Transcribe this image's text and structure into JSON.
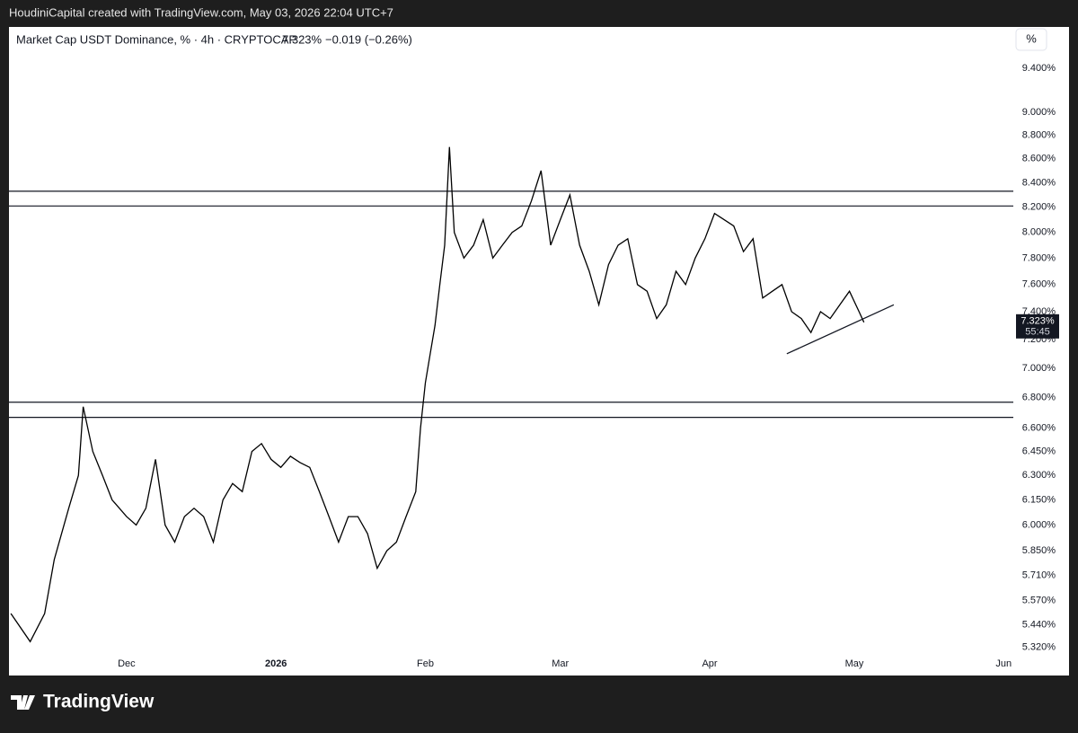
{
  "header": {
    "credit": "HoudiniCapital created with TradingView.com, May 03, 2026 22:04 UTC+7"
  },
  "footer": {
    "brand": "TradingView"
  },
  "chart_data": {
    "type": "line",
    "title": "Market Cap USDT Dominance, % · 4h · CRYPTOCAP",
    "last_value_label": "7.323%",
    "change_label": "−0.019 (−0.26%)",
    "scale_button": "%",
    "log_scale": true,
    "x": [
      -24,
      -20,
      -17,
      -15,
      -12,
      -10,
      -9,
      -7,
      -5,
      -3,
      0,
      2,
      4,
      6,
      8,
      10,
      12,
      14,
      16,
      18,
      20,
      22,
      24,
      26,
      28,
      30,
      32,
      34,
      36,
      38,
      40,
      42,
      44,
      46,
      48,
      50,
      52,
      54,
      56,
      58,
      60,
      61,
      62,
      63,
      64,
      65,
      66,
      67,
      68,
      70,
      72,
      74,
      76,
      78,
      80,
      82,
      84,
      86,
      88,
      90,
      92,
      94,
      96,
      98,
      100,
      102,
      104,
      106,
      108,
      110,
      112,
      114,
      116,
      118,
      120,
      122,
      124,
      126,
      128,
      130,
      132,
      134,
      136,
      138,
      140,
      142,
      144,
      146,
      148,
      150,
      152,
      153
    ],
    "series": [
      {
        "color": "#000000",
        "values": [
          5.5,
          5.35,
          5.5,
          5.8,
          6.1,
          6.3,
          6.74,
          6.45,
          6.3,
          6.15,
          6.05,
          6.0,
          6.1,
          6.4,
          6.0,
          5.9,
          6.05,
          6.1,
          6.05,
          5.9,
          6.15,
          6.25,
          6.2,
          6.45,
          6.5,
          6.4,
          6.35,
          6.42,
          6.38,
          6.35,
          6.2,
          6.05,
          5.9,
          6.05,
          6.05,
          5.95,
          5.75,
          5.85,
          5.9,
          6.05,
          6.2,
          6.6,
          6.9,
          7.1,
          7.3,
          7.6,
          7.9,
          8.7,
          8.0,
          7.8,
          7.9,
          8.1,
          7.8,
          7.9,
          8.0,
          8.05,
          8.25,
          8.5,
          7.9,
          8.1,
          8.3,
          7.9,
          7.7,
          7.45,
          7.75,
          7.9,
          7.95,
          7.6,
          7.55,
          7.35,
          7.45,
          7.7,
          7.6,
          7.8,
          7.95,
          8.15,
          8.1,
          8.05,
          7.85,
          7.95,
          7.5,
          7.55,
          7.6,
          7.4,
          7.35,
          7.25,
          7.4,
          7.35,
          7.45,
          7.55,
          7.4,
          7.323
        ]
      }
    ],
    "last_price": {
      "value": 7.323,
      "label": "7.323%"
    },
    "countdown": "55:45",
    "hlines": [
      8.33,
      8.21,
      6.77,
      6.67
    ],
    "trendline": {
      "x": [
        137,
        159.2
      ],
      "values": [
        7.1,
        7.45
      ]
    },
    "xlim": [
      -24.4,
      184
    ],
    "ylim": [
      5.175,
      9.79
    ],
    "xticks": [
      {
        "value": 0,
        "label": "Dec"
      },
      {
        "value": 31,
        "label": "2026"
      },
      {
        "value": 62,
        "label": "Feb"
      },
      {
        "value": 90,
        "label": "Mar"
      },
      {
        "value": 121,
        "label": "Apr"
      },
      {
        "value": 151,
        "label": "May"
      },
      {
        "value": 182,
        "label": "Jun"
      }
    ],
    "yticks": [
      {
        "value": 9.4,
        "label": "9.400%"
      },
      {
        "value": 9.0,
        "label": "9.000%"
      },
      {
        "value": 8.8,
        "label": "8.800%"
      },
      {
        "value": 8.6,
        "label": "8.600%"
      },
      {
        "value": 8.4,
        "label": "8.400%"
      },
      {
        "value": 8.2,
        "label": "8.200%"
      },
      {
        "value": 8.0,
        "label": "8.000%"
      },
      {
        "value": 7.8,
        "label": "7.800%"
      },
      {
        "value": 7.6,
        "label": "7.600%"
      },
      {
        "value": 7.4,
        "label": "7.400%"
      },
      {
        "value": 7.2,
        "label": "7.200%"
      },
      {
        "value": 7.0,
        "label": "7.000%"
      },
      {
        "value": 6.8,
        "label": "6.800%"
      },
      {
        "value": 6.6,
        "label": "6.600%"
      },
      {
        "value": 6.45,
        "label": "6.450%"
      },
      {
        "value": 6.3,
        "label": "6.300%"
      },
      {
        "value": 6.15,
        "label": "6.150%"
      },
      {
        "value": 6.0,
        "label": "6.000%"
      },
      {
        "value": 5.85,
        "label": "5.850%"
      },
      {
        "value": 5.71,
        "label": "5.710%"
      },
      {
        "value": 5.57,
        "label": "5.570%"
      },
      {
        "value": 5.44,
        "label": "5.440%"
      },
      {
        "value": 5.32,
        "label": "5.320%"
      }
    ]
  }
}
